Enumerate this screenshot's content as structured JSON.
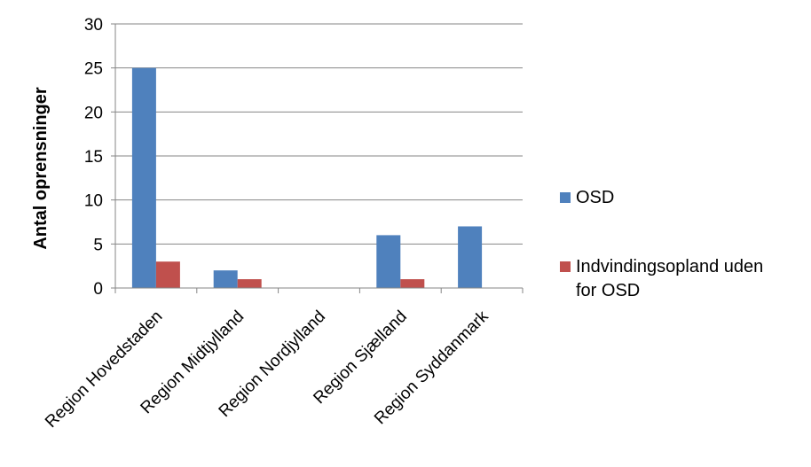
{
  "chart_data": {
    "type": "bar",
    "title": "",
    "xlabel": "",
    "ylabel": "Antal oprensninger",
    "ylim": [
      0,
      30
    ],
    "yticks": [
      0,
      5,
      10,
      15,
      20,
      25,
      30
    ],
    "grid": true,
    "legend_position": "right",
    "categories": [
      "Region Hovedstaden",
      "Region Midtjylland",
      "Region Nordjylland",
      "Region Sjælland",
      "Region Syddanmark"
    ],
    "series": [
      {
        "name": "OSD",
        "color": "#4F81BD",
        "values": [
          25,
          2,
          0,
          6,
          7
        ]
      },
      {
        "name": "Indvindingsopland uden for OSD",
        "legend_lines": [
          "Indvindingsopland uden",
          "for OSD"
        ],
        "color": "#C0504D",
        "values": [
          3,
          1,
          0,
          1,
          0
        ]
      }
    ]
  }
}
